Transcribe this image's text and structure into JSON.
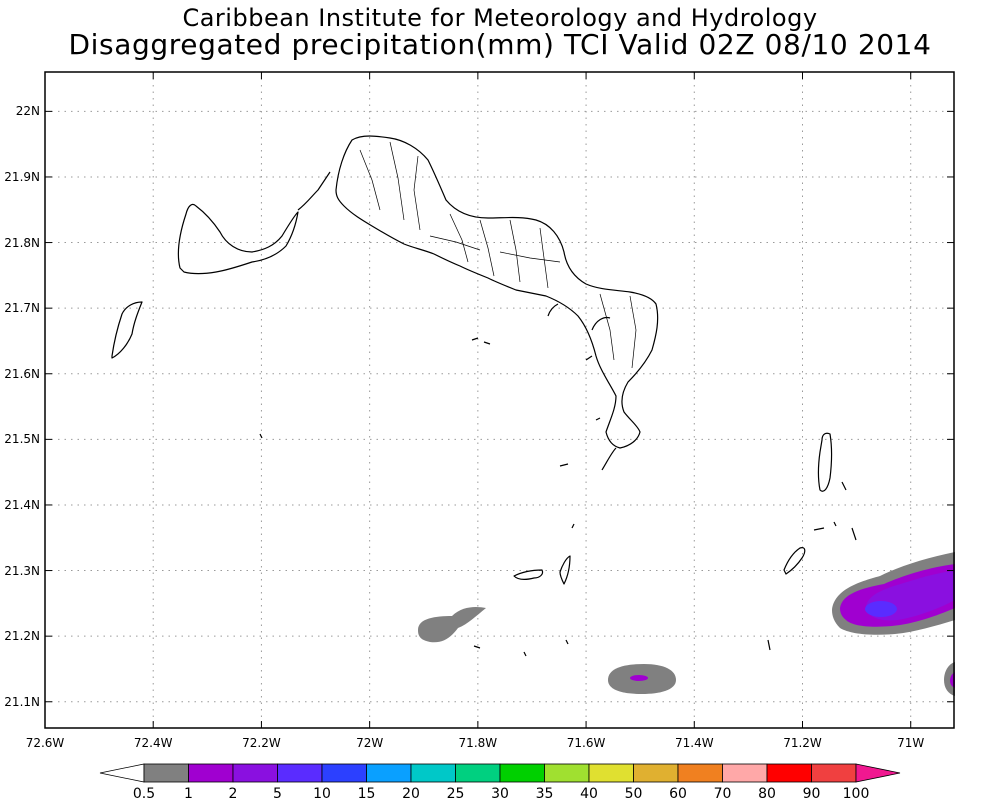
{
  "title": {
    "line1": "Caribbean Institute for Meteorology and Hydrology",
    "line2": "Disaggregated precipitation(mm) TCI Valid 02Z 08/10 2014"
  },
  "map": {
    "lat_ticks": [
      "22N",
      "21.9N",
      "21.8N",
      "21.7N",
      "21.6N",
      "21.5N",
      "21.4N",
      "21.3N",
      "21.2N",
      "21.1N"
    ],
    "lon_ticks": [
      "72.6W",
      "72.4W",
      "72.2W",
      "72W",
      "71.8W",
      "71.6W",
      "71.4W",
      "71.2W",
      "71W"
    ],
    "lat_range": [
      21.06,
      22.06
    ],
    "lon_range": [
      -72.6,
      -70.92
    ],
    "grid": true,
    "colors": {
      "land_outline": "#000000",
      "grid": "#9a9a9a",
      "frame": "#000000"
    }
  },
  "colorbar": {
    "labels": [
      "0.5",
      "1",
      "2",
      "5",
      "10",
      "15",
      "20",
      "25",
      "30",
      "35",
      "40",
      "50",
      "60",
      "70",
      "80",
      "90",
      "100"
    ],
    "colors": [
      "#808080",
      "#a000d0",
      "#8a10e0",
      "#5a2cff",
      "#2c40ff",
      "#0aa0ff",
      "#00c8c8",
      "#00d080",
      "#00d000",
      "#a0e030",
      "#e0e030",
      "#e0b030",
      "#f08020",
      "#ffa8a8",
      "#ff0000",
      "#f04040"
    ],
    "below_color": "#ffffff",
    "above_color": "#f01890"
  }
}
